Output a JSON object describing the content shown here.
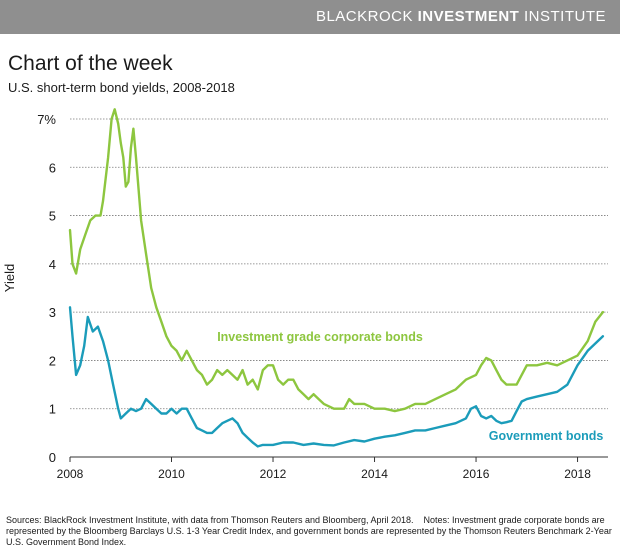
{
  "header": {
    "brand_thin": "BLACKROCK",
    "brand_bold": "INVESTMENT",
    "brand_thin2": "INSTITUTE"
  },
  "title": "Chart of the week",
  "subtitle": "U.S. short-term bond yields, 2008-2018",
  "footnote": {
    "sources": "Sources: BlackRock Investment Institute, with data from Thomson Reuters and Bloomberg, April 2018.",
    "notes": "Notes: Investment grade corporate bonds are represented by the Bloomberg Barclays U.S. 1-3 Year Credit Index, and government bonds are represented by the Thomson Reuters Benchmark 2-Year U.S. Government Bond Index."
  },
  "colors": {
    "banner": "#8f8f8f",
    "corporate": "#8dc63f",
    "government": "#1b9cba",
    "grid": "#7a7a7a"
  },
  "chart_data": {
    "type": "line",
    "ylabel": "Yield",
    "xlabel": "",
    "ylim": [
      0,
      7
    ],
    "xlim": [
      2008,
      2018.6
    ],
    "yticks": [
      0,
      1,
      2,
      3,
      4,
      5,
      6,
      7
    ],
    "ytick_labels": [
      "0",
      "1",
      "2",
      "3",
      "4",
      "5",
      "6",
      "7%"
    ],
    "xticks": [
      2008,
      2010,
      2012,
      2014,
      2016,
      2018
    ],
    "xtick_labels": [
      "2008",
      "2010",
      "2012",
      "2014",
      "2016",
      "2018"
    ],
    "grid": "horizontal",
    "series": [
      {
        "name": "Investment grade corporate bonds",
        "color": "#8dc63f",
        "points": [
          [
            2008.0,
            4.7
          ],
          [
            2008.05,
            4.0
          ],
          [
            2008.12,
            3.8
          ],
          [
            2008.2,
            4.3
          ],
          [
            2008.3,
            4.6
          ],
          [
            2008.4,
            4.9
          ],
          [
            2008.5,
            5.0
          ],
          [
            2008.6,
            5.0
          ],
          [
            2008.65,
            5.3
          ],
          [
            2008.75,
            6.2
          ],
          [
            2008.82,
            7.0
          ],
          [
            2008.88,
            7.2
          ],
          [
            2008.95,
            6.9
          ],
          [
            2009.0,
            6.5
          ],
          [
            2009.05,
            6.2
          ],
          [
            2009.1,
            5.6
          ],
          [
            2009.15,
            5.7
          ],
          [
            2009.2,
            6.4
          ],
          [
            2009.25,
            6.8
          ],
          [
            2009.3,
            6.2
          ],
          [
            2009.4,
            4.9
          ],
          [
            2009.5,
            4.2
          ],
          [
            2009.6,
            3.5
          ],
          [
            2009.7,
            3.1
          ],
          [
            2009.8,
            2.8
          ],
          [
            2009.9,
            2.5
          ],
          [
            2010.0,
            2.3
          ],
          [
            2010.1,
            2.2
          ],
          [
            2010.2,
            2.0
          ],
          [
            2010.3,
            2.2
          ],
          [
            2010.4,
            2.0
          ],
          [
            2010.5,
            1.8
          ],
          [
            2010.6,
            1.7
          ],
          [
            2010.7,
            1.5
          ],
          [
            2010.8,
            1.6
          ],
          [
            2010.9,
            1.8
          ],
          [
            2011.0,
            1.7
          ],
          [
            2011.1,
            1.8
          ],
          [
            2011.2,
            1.7
          ],
          [
            2011.3,
            1.6
          ],
          [
            2011.4,
            1.8
          ],
          [
            2011.5,
            1.5
          ],
          [
            2011.6,
            1.6
          ],
          [
            2011.7,
            1.4
          ],
          [
            2011.8,
            1.8
          ],
          [
            2011.9,
            1.9
          ],
          [
            2012.0,
            1.9
          ],
          [
            2012.1,
            1.6
          ],
          [
            2012.2,
            1.5
          ],
          [
            2012.3,
            1.6
          ],
          [
            2012.4,
            1.6
          ],
          [
            2012.5,
            1.4
          ],
          [
            2012.6,
            1.3
          ],
          [
            2012.7,
            1.2
          ],
          [
            2012.8,
            1.3
          ],
          [
            2012.9,
            1.2
          ],
          [
            2013.0,
            1.1
          ],
          [
            2013.2,
            1.0
          ],
          [
            2013.4,
            1.0
          ],
          [
            2013.5,
            1.2
          ],
          [
            2013.6,
            1.1
          ],
          [
            2013.8,
            1.1
          ],
          [
            2014.0,
            1.0
          ],
          [
            2014.2,
            1.0
          ],
          [
            2014.4,
            0.95
          ],
          [
            2014.6,
            1.0
          ],
          [
            2014.8,
            1.1
          ],
          [
            2015.0,
            1.1
          ],
          [
            2015.2,
            1.2
          ],
          [
            2015.4,
            1.3
          ],
          [
            2015.6,
            1.4
          ],
          [
            2015.8,
            1.6
          ],
          [
            2016.0,
            1.7
          ],
          [
            2016.1,
            1.9
          ],
          [
            2016.2,
            2.05
          ],
          [
            2016.3,
            2.0
          ],
          [
            2016.4,
            1.8
          ],
          [
            2016.5,
            1.6
          ],
          [
            2016.6,
            1.5
          ],
          [
            2016.7,
            1.5
          ],
          [
            2016.8,
            1.5
          ],
          [
            2016.9,
            1.7
          ],
          [
            2017.0,
            1.9
          ],
          [
            2017.2,
            1.9
          ],
          [
            2017.4,
            1.95
          ],
          [
            2017.6,
            1.9
          ],
          [
            2017.8,
            2.0
          ],
          [
            2018.0,
            2.1
          ],
          [
            2018.2,
            2.4
          ],
          [
            2018.35,
            2.8
          ],
          [
            2018.5,
            3.0
          ]
        ]
      },
      {
        "name": "Government bonds",
        "color": "#1b9cba",
        "points": [
          [
            2008.0,
            3.1
          ],
          [
            2008.05,
            2.5
          ],
          [
            2008.12,
            1.7
          ],
          [
            2008.2,
            1.9
          ],
          [
            2008.28,
            2.3
          ],
          [
            2008.35,
            2.9
          ],
          [
            2008.45,
            2.6
          ],
          [
            2008.55,
            2.7
          ],
          [
            2008.65,
            2.4
          ],
          [
            2008.75,
            2.0
          ],
          [
            2008.85,
            1.5
          ],
          [
            2008.95,
            1.0
          ],
          [
            2009.0,
            0.8
          ],
          [
            2009.1,
            0.9
          ],
          [
            2009.2,
            1.0
          ],
          [
            2009.3,
            0.95
          ],
          [
            2009.4,
            1.0
          ],
          [
            2009.5,
            1.2
          ],
          [
            2009.6,
            1.1
          ],
          [
            2009.7,
            1.0
          ],
          [
            2009.8,
            0.9
          ],
          [
            2009.9,
            0.9
          ],
          [
            2010.0,
            1.0
          ],
          [
            2010.1,
            0.9
          ],
          [
            2010.2,
            1.0
          ],
          [
            2010.3,
            1.0
          ],
          [
            2010.4,
            0.8
          ],
          [
            2010.5,
            0.6
          ],
          [
            2010.6,
            0.55
          ],
          [
            2010.7,
            0.5
          ],
          [
            2010.8,
            0.5
          ],
          [
            2010.9,
            0.6
          ],
          [
            2011.0,
            0.7
          ],
          [
            2011.1,
            0.75
          ],
          [
            2011.2,
            0.8
          ],
          [
            2011.3,
            0.7
          ],
          [
            2011.4,
            0.5
          ],
          [
            2011.5,
            0.4
          ],
          [
            2011.6,
            0.3
          ],
          [
            2011.7,
            0.22
          ],
          [
            2011.8,
            0.25
          ],
          [
            2011.9,
            0.25
          ],
          [
            2012.0,
            0.25
          ],
          [
            2012.2,
            0.3
          ],
          [
            2012.4,
            0.3
          ],
          [
            2012.6,
            0.25
          ],
          [
            2012.8,
            0.28
          ],
          [
            2013.0,
            0.25
          ],
          [
            2013.2,
            0.24
          ],
          [
            2013.4,
            0.3
          ],
          [
            2013.6,
            0.35
          ],
          [
            2013.8,
            0.32
          ],
          [
            2014.0,
            0.38
          ],
          [
            2014.2,
            0.42
          ],
          [
            2014.4,
            0.45
          ],
          [
            2014.6,
            0.5
          ],
          [
            2014.8,
            0.55
          ],
          [
            2015.0,
            0.55
          ],
          [
            2015.2,
            0.6
          ],
          [
            2015.4,
            0.65
          ],
          [
            2015.6,
            0.7
          ],
          [
            2015.8,
            0.8
          ],
          [
            2015.9,
            1.0
          ],
          [
            2016.0,
            1.05
          ],
          [
            2016.1,
            0.85
          ],
          [
            2016.2,
            0.8
          ],
          [
            2016.3,
            0.85
          ],
          [
            2016.4,
            0.75
          ],
          [
            2016.5,
            0.7
          ],
          [
            2016.6,
            0.72
          ],
          [
            2016.7,
            0.75
          ],
          [
            2016.8,
            0.95
          ],
          [
            2016.9,
            1.15
          ],
          [
            2017.0,
            1.2
          ],
          [
            2017.2,
            1.25
          ],
          [
            2017.4,
            1.3
          ],
          [
            2017.6,
            1.35
          ],
          [
            2017.8,
            1.5
          ],
          [
            2018.0,
            1.9
          ],
          [
            2018.2,
            2.2
          ],
          [
            2018.35,
            2.35
          ],
          [
            2018.5,
            2.5
          ]
        ]
      }
    ],
    "annotations": [
      {
        "text": "Investment grade corporate bonds",
        "series": 0,
        "x": 2010.9,
        "y": 2.4
      },
      {
        "text": "Government bonds",
        "series": 1,
        "x": 2016.25,
        "y": 0.35
      }
    ]
  }
}
